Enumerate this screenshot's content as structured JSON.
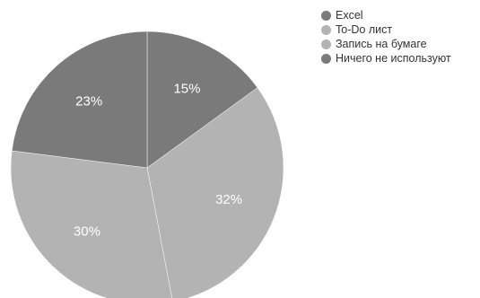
{
  "chart_data": {
    "type": "pie",
    "categories": [
      "Excel",
      "To-Do лист",
      "Запись на бумаге",
      "Ничего не используют"
    ],
    "values": [
      15,
      32,
      30,
      23
    ],
    "value_labels": [
      "15%",
      "32%",
      "30%",
      "23%"
    ],
    "colors": [
      "#7a7a7a",
      "#b3b3b3",
      "#b3b3b3",
      "#7a7a7a"
    ],
    "start_angle": "top (12 o'clock)",
    "direction": "clockwise",
    "legend_position": "top-right"
  }
}
